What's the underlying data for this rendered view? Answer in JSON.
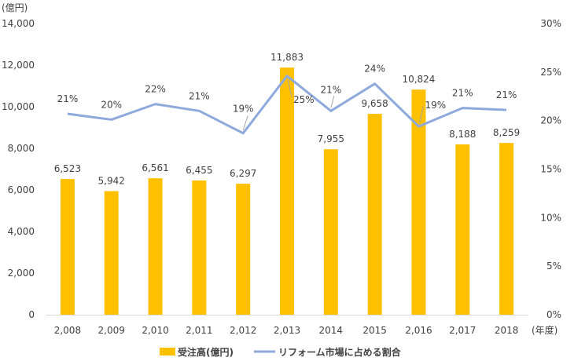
{
  "chart_data": {
    "type": "bar+line",
    "categories": [
      "2,008",
      "2,009",
      "2,010",
      "2,011",
      "2,012",
      "2,013",
      "2014",
      "2015",
      "2,016",
      "2,017",
      "2018"
    ],
    "series": [
      {
        "name": "受注高(億円)",
        "type": "bar",
        "axis": "left",
        "values": [
          6523,
          5942,
          6561,
          6455,
          6297,
          11883,
          7955,
          9658,
          10824,
          8188,
          8259
        ],
        "labels": [
          "6,523",
          "5,942",
          "6,561",
          "6,455",
          "6,297",
          "11,883",
          "7,955",
          "9,658",
          "10,824",
          "8,188",
          "8,259"
        ],
        "color": "#FFC000"
      },
      {
        "name": "リフォーム市場に占める割合",
        "type": "line",
        "axis": "right",
        "values": [
          20.7,
          20.1,
          21.7,
          21.0,
          18.7,
          24.6,
          21.0,
          23.8,
          19.4,
          21.3,
          21.1
        ],
        "labels": [
          "21%",
          "20%",
          "22%",
          "21%",
          "19%",
          "25%",
          "21%",
          "24%",
          "19%",
          "21%",
          "21%"
        ],
        "color": "#8EA9DB"
      }
    ],
    "y_left": {
      "unit_label": "(億円)",
      "ylim": [
        0,
        14000
      ],
      "ticks": [
        "0",
        "2,000",
        "4,000",
        "6,000",
        "8,000",
        "10,000",
        "12,000",
        "14,000"
      ]
    },
    "y_right": {
      "ylim": [
        0,
        30
      ],
      "ticks": [
        "0%",
        "5%",
        "10%",
        "15%",
        "20%",
        "25%",
        "30%"
      ]
    },
    "x_unit_label": "(年度)",
    "grid": false,
    "legend_position": "bottom"
  }
}
